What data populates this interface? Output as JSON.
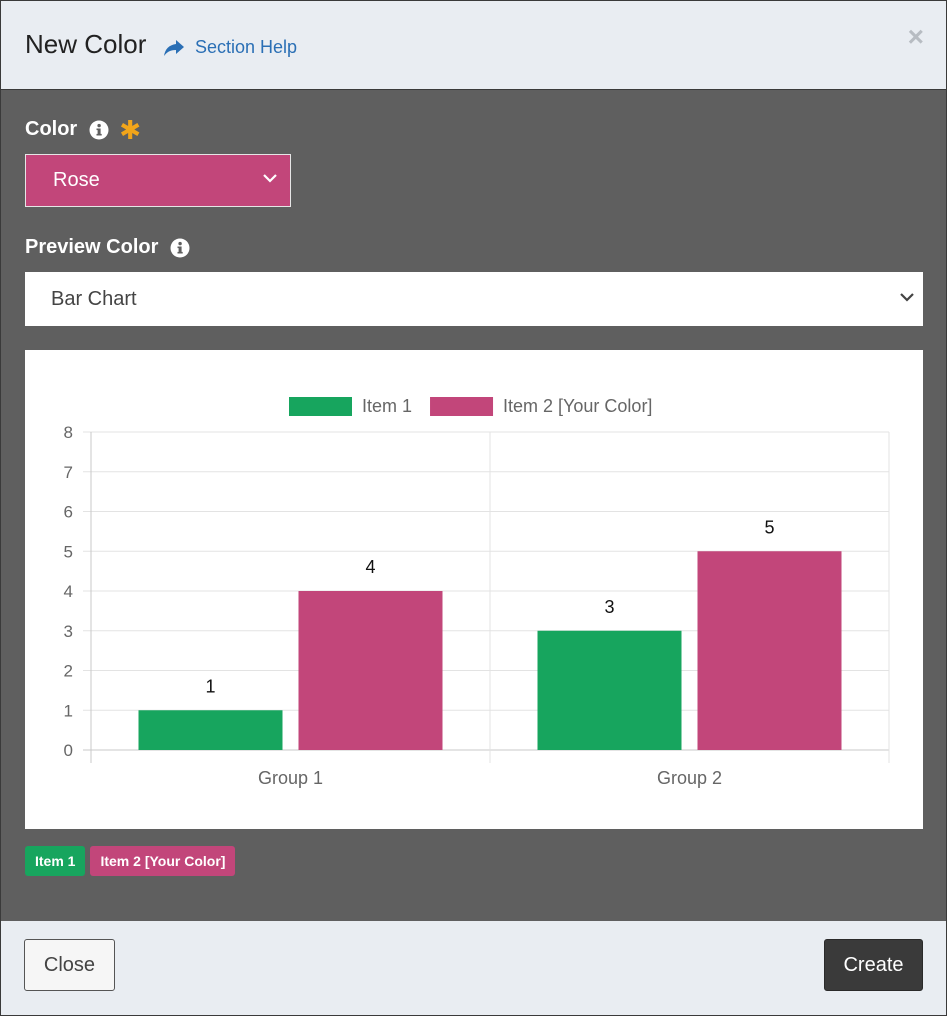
{
  "dialog": {
    "title": "New Color",
    "help_label": "Section Help",
    "close_symbol": "×"
  },
  "color_field": {
    "label": "Color",
    "selected": "Rose",
    "value_color": "#c2467a"
  },
  "preview_field": {
    "label": "Preview Color",
    "selected": "Bar Chart"
  },
  "chart_data": {
    "type": "bar",
    "categories": [
      "Group 1",
      "Group 2"
    ],
    "series": [
      {
        "name": "Item 1",
        "values": [
          1,
          3
        ],
        "color": "#17a55e"
      },
      {
        "name": "Item 2 [Your Color]",
        "values": [
          4,
          5
        ],
        "color": "#c2467a"
      }
    ],
    "ylim": [
      0,
      8
    ],
    "yticks": [
      0,
      1,
      2,
      3,
      4,
      5,
      6,
      7,
      8
    ],
    "data_labels": true,
    "grid": true,
    "legend": "top-center"
  },
  "badges": [
    {
      "label": "Item 1",
      "color": "#17a55e"
    },
    {
      "label": "Item 2 [Your Color]",
      "color": "#c2467a"
    }
  ],
  "footer": {
    "close_label": "Close",
    "create_label": "Create"
  },
  "colors": {
    "accent_required": "#f2a51a",
    "link": "#2a6fb5",
    "body_bg": "#5f5f5f"
  }
}
